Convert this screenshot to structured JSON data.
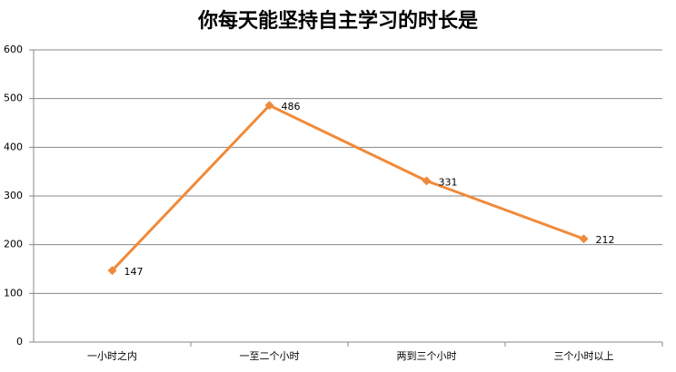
{
  "chart_data": {
    "type": "line",
    "title": "你每天能坚持自主学习的时长是",
    "categories": [
      "一小时之内",
      "一至二个小时",
      "两到三个小时",
      "三个小时以上"
    ],
    "values": [
      147,
      486,
      331,
      212
    ],
    "color": "#f08a3a",
    "ylim": [
      0,
      600
    ],
    "yticks": [
      0,
      100,
      200,
      300,
      400,
      500,
      600
    ],
    "grid": true
  }
}
